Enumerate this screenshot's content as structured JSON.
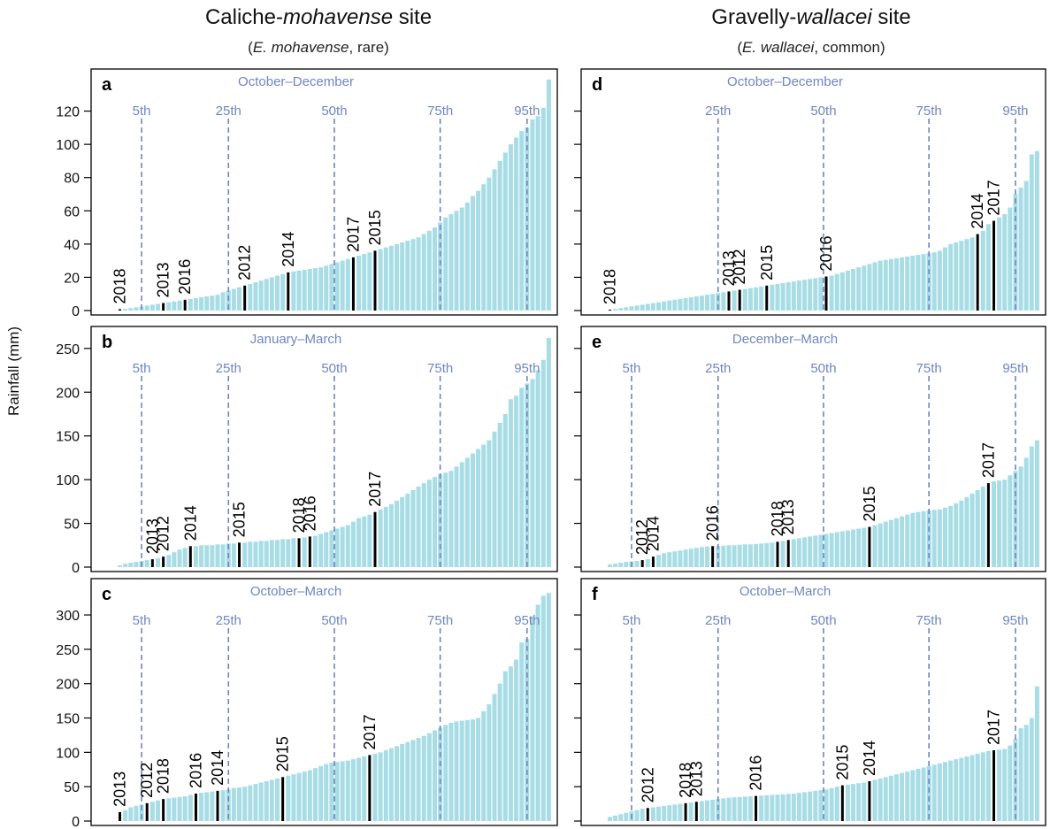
{
  "columns": [
    {
      "title_pre": "Caliche-",
      "title_em": "mohavense",
      "title_post": " site",
      "sub_pre": "(",
      "sub_em": "E. mohavense",
      "sub_post": ", rare)"
    },
    {
      "title_pre": "Gravelly-",
      "title_em": "wallacei",
      "title_post": " site",
      "sub_pre": "(",
      "sub_em": "E. wallacei",
      "sub_post": ", common)"
    }
  ],
  "ylabel": "Rainfall (mm)",
  "colors": {
    "bar": "#a8dde6",
    "highlight": "#000000",
    "percentile": "#6f86c2",
    "axis": "#000000"
  },
  "chart_data": [
    {
      "panel": "a",
      "type": "bar",
      "title": "October–December",
      "ylim": [
        0,
        140
      ],
      "yticks": [
        0,
        20,
        40,
        60,
        80,
        100,
        120
      ],
      "show_ytick_labels": true,
      "percentiles": [
        {
          "label": "5th",
          "rank": 4.0
        },
        {
          "label": "25th",
          "rank": 20.0
        },
        {
          "label": "50th",
          "rank": 39.5
        },
        {
          "label": "75th",
          "rank": 59.0
        },
        {
          "label": "95th",
          "rank": 75.0
        }
      ],
      "sorted_values": [
        0.8,
        1,
        1.5,
        2,
        2.3,
        3,
        3.5,
        4,
        4.5,
        5,
        5.5,
        6,
        6.5,
        7,
        7.5,
        8,
        8.5,
        9,
        9.5,
        11,
        12,
        13,
        14,
        15,
        16,
        17,
        18,
        19,
        20,
        21,
        22,
        23,
        23.5,
        24,
        24.5,
        25,
        25.5,
        26,
        27,
        28,
        29,
        30,
        31,
        32,
        33,
        34,
        35,
        36,
        37,
        38,
        39,
        40,
        41,
        42,
        43,
        44,
        46,
        48,
        50,
        53,
        56,
        58,
        60,
        62,
        65,
        69,
        72,
        76,
        80,
        85,
        90,
        95,
        100,
        104,
        108,
        110,
        115,
        117,
        122,
        139
      ],
      "years": [
        {
          "label": "2018",
          "rank": 0
        },
        {
          "label": "2013",
          "rank": 8
        },
        {
          "label": "2016",
          "rank": 12
        },
        {
          "label": "2012",
          "rank": 23
        },
        {
          "label": "2014",
          "rank": 31
        },
        {
          "label": "2017",
          "rank": 43
        },
        {
          "label": "2015",
          "rank": 47
        }
      ]
    },
    {
      "panel": "b",
      "type": "bar",
      "title": "January–March",
      "ylim": [
        0,
        265
      ],
      "yticks": [
        0,
        50,
        100,
        150,
        200,
        250
      ],
      "show_ytick_labels": true,
      "percentiles": [
        {
          "label": "5th",
          "rank": 4.0
        },
        {
          "label": "25th",
          "rank": 20.0
        },
        {
          "label": "50th",
          "rank": 39.5
        },
        {
          "label": "75th",
          "rank": 59.0
        },
        {
          "label": "95th",
          "rank": 75.0
        }
      ],
      "sorted_values": [
        2,
        4,
        5,
        6,
        7,
        8,
        9,
        10,
        12,
        14,
        17,
        20,
        22,
        24,
        24,
        25,
        25,
        25,
        26,
        26,
        27,
        27,
        28,
        28,
        29,
        29,
        30,
        30,
        31,
        31,
        32,
        32,
        33,
        33,
        34,
        35,
        36,
        38,
        40,
        42,
        44,
        46,
        48,
        52,
        56,
        58,
        60,
        63,
        66,
        69,
        72,
        76,
        80,
        84,
        88,
        92,
        96,
        100,
        103,
        106,
        108,
        110,
        115,
        120,
        125,
        130,
        135,
        140,
        145,
        155,
        165,
        175,
        192,
        196,
        205,
        210,
        215,
        225,
        237,
        262
      ],
      "years": [
        {
          "label": "2013",
          "rank": 6
        },
        {
          "label": "2012",
          "rank": 8
        },
        {
          "label": "2014",
          "rank": 13
        },
        {
          "label": "2015",
          "rank": 22
        },
        {
          "label": "2018",
          "rank": 33
        },
        {
          "label": "2016",
          "rank": 35
        },
        {
          "label": "2017",
          "rank": 47
        }
      ]
    },
    {
      "panel": "c",
      "type": "bar",
      "title": "October–March",
      "ylim": [
        0,
        340
      ],
      "yticks": [
        0,
        50,
        100,
        150,
        200,
        250,
        300
      ],
      "show_ytick_labels": true,
      "percentiles": [
        {
          "label": "5th",
          "rank": 4.0
        },
        {
          "label": "25th",
          "rank": 20.0
        },
        {
          "label": "50th",
          "rank": 39.5
        },
        {
          "label": "75th",
          "rank": 59.0
        },
        {
          "label": "95th",
          "rank": 75.0
        }
      ],
      "sorted_values": [
        13,
        16,
        20,
        22,
        24,
        26,
        28,
        30,
        32,
        33,
        34,
        35,
        36,
        38,
        40,
        41,
        42,
        43,
        44,
        45,
        46,
        48,
        49,
        50,
        52,
        54,
        56,
        58,
        60,
        62,
        64,
        66,
        68,
        70,
        72,
        74,
        77,
        80,
        83,
        85,
        86,
        87,
        88,
        90,
        92,
        94,
        96,
        98,
        100,
        103,
        106,
        109,
        112,
        115,
        118,
        121,
        124,
        128,
        132,
        136,
        140,
        143,
        145,
        146,
        147,
        148,
        150,
        160,
        170,
        185,
        200,
        218,
        225,
        235,
        260,
        265,
        298,
        315,
        328,
        332
      ],
      "years": [
        {
          "label": "2013",
          "rank": 0
        },
        {
          "label": "2012",
          "rank": 5
        },
        {
          "label": "2018",
          "rank": 8
        },
        {
          "label": "2016",
          "rank": 14
        },
        {
          "label": "2014",
          "rank": 18
        },
        {
          "label": "2015",
          "rank": 30
        },
        {
          "label": "2017",
          "rank": 46
        }
      ]
    },
    {
      "panel": "d",
      "type": "bar",
      "title": "October–December",
      "ylim": [
        0,
        140
      ],
      "yticks": [
        0,
        20,
        40,
        60,
        80,
        100,
        120
      ],
      "show_ytick_labels": false,
      "percentiles": [
        {
          "label": "25th",
          "rank": 20.0
        },
        {
          "label": "50th",
          "rank": 39.5
        },
        {
          "label": "75th",
          "rank": 59.0
        },
        {
          "label": "95th",
          "rank": 75.0
        }
      ],
      "sorted_values": [
        0.5,
        1,
        1.5,
        2,
        2.5,
        3,
        3.5,
        4,
        4.5,
        5,
        5.5,
        6,
        6.5,
        7,
        7.5,
        8,
        8.5,
        9,
        9.5,
        10,
        10.5,
        11,
        11.5,
        12,
        12.5,
        13,
        13.5,
        14,
        14.5,
        15,
        15.5,
        16,
        16.5,
        17,
        17.5,
        18,
        18.5,
        19,
        19.5,
        20,
        20.5,
        21,
        22,
        23,
        24,
        25,
        26,
        27,
        28,
        29,
        30,
        30.5,
        31,
        31.5,
        32,
        32.5,
        33,
        33.5,
        34,
        34.5,
        35,
        36,
        38,
        40,
        41,
        42,
        43,
        44,
        46,
        48,
        52,
        54,
        56,
        58,
        62,
        70,
        74,
        78,
        94,
        96
      ],
      "years": [
        {
          "label": "2018",
          "rank": 0
        },
        {
          "label": "2013",
          "rank": 22
        },
        {
          "label": "2012",
          "rank": 24
        },
        {
          "label": "2015",
          "rank": 29
        },
        {
          "label": "2016",
          "rank": 40
        },
        {
          "label": "2014",
          "rank": 68
        },
        {
          "label": "2017",
          "rank": 71
        }
      ]
    },
    {
      "panel": "e",
      "type": "bar",
      "title": "December–March",
      "ylim": [
        0,
        265
      ],
      "yticks": [
        0,
        50,
        100,
        150,
        200,
        250
      ],
      "show_ytick_labels": false,
      "percentiles": [
        {
          "label": "5th",
          "rank": 4.0
        },
        {
          "label": "25th",
          "rank": 20.0
        },
        {
          "label": "50th",
          "rank": 39.5
        },
        {
          "label": "75th",
          "rank": 59.0
        },
        {
          "label": "95th",
          "rank": 75.0
        }
      ],
      "sorted_values": [
        3,
        4,
        5,
        6,
        6.5,
        7,
        8,
        9,
        12,
        14,
        16,
        17,
        18,
        19,
        20,
        21,
        22,
        23,
        23.5,
        24,
        24,
        24.5,
        25,
        25,
        25.5,
        26,
        26,
        26.5,
        27,
        27.5,
        28,
        29,
        30,
        31,
        32,
        33,
        34,
        35,
        36,
        37,
        38,
        39,
        40,
        41,
        42,
        43,
        44,
        45,
        46,
        48,
        50,
        52,
        54,
        56,
        58,
        60,
        62,
        63,
        64,
        65,
        65.5,
        66,
        68,
        70,
        73,
        76,
        80,
        84,
        88,
        92,
        96,
        98,
        99,
        100,
        105,
        110,
        115,
        125,
        138,
        145
      ],
      "years": [
        {
          "label": "2012",
          "rank": 6
        },
        {
          "label": "2014",
          "rank": 8
        },
        {
          "label": "2016",
          "rank": 19
        },
        {
          "label": "2018",
          "rank": 31
        },
        {
          "label": "2013",
          "rank": 33
        },
        {
          "label": "2015",
          "rank": 48
        },
        {
          "label": "2017",
          "rank": 70
        }
      ]
    },
    {
      "panel": "f",
      "type": "bar",
      "title": "October–March",
      "ylim": [
        0,
        340
      ],
      "yticks": [
        0,
        50,
        100,
        150,
        200,
        250,
        300
      ],
      "show_ytick_labels": false,
      "percentiles": [
        {
          "label": "5th",
          "rank": 4.0
        },
        {
          "label": "25th",
          "rank": 20.0
        },
        {
          "label": "50th",
          "rank": 39.5
        },
        {
          "label": "75th",
          "rank": 59.0
        },
        {
          "label": "95th",
          "rank": 75.0
        }
      ],
      "sorted_values": [
        6,
        8,
        10,
        12,
        14,
        16,
        18,
        19,
        20,
        21,
        22,
        23,
        24,
        25,
        26,
        27,
        28,
        29,
        30,
        31,
        32,
        33,
        34,
        34.5,
        35,
        35.5,
        36,
        36.5,
        37,
        37.5,
        38,
        38.5,
        39,
        39.5,
        40,
        41,
        42,
        43,
        44,
        45,
        46,
        48,
        50,
        52,
        53,
        54,
        55,
        56,
        58,
        60,
        62,
        64,
        66,
        68,
        70,
        72,
        74,
        76,
        78,
        80,
        82,
        84,
        86,
        88,
        90,
        92,
        94,
        96,
        98,
        100,
        102,
        103,
        104,
        105,
        110,
        120,
        135,
        140,
        150,
        196
      ],
      "years": [
        {
          "label": "2012",
          "rank": 7
        },
        {
          "label": "2018",
          "rank": 14
        },
        {
          "label": "2013",
          "rank": 16
        },
        {
          "label": "2016",
          "rank": 27
        },
        {
          "label": "2015",
          "rank": 43
        },
        {
          "label": "2014",
          "rank": 48
        },
        {
          "label": "2017",
          "rank": 71
        }
      ]
    }
  ]
}
